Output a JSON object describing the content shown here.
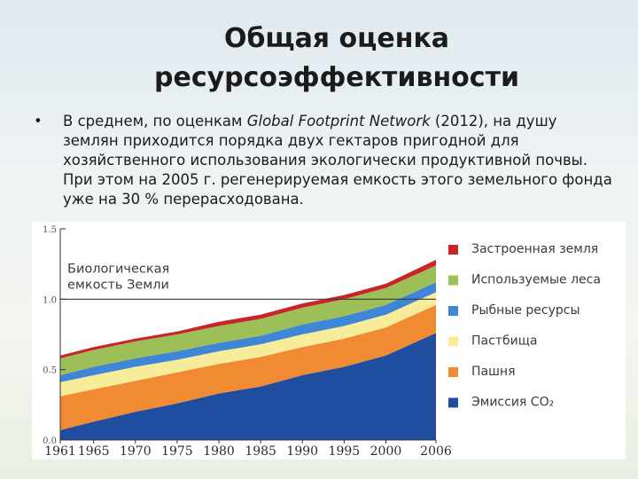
{
  "slide": {
    "title_line1": "Общая оценка",
    "title_line2": "ресурсоэффективности",
    "bullet_symbol": "•",
    "bullet_parts": {
      "before": "В среднем, по оценкам ",
      "italic": "Global Footprint Network",
      "after": " (2012), на душу землян приходится порядка двух гектаров пригодной для хозяйственного использования экологически продуктивной почвы. При этом на 2005 г. регенерируемая емкость этого земельного фонда уже на 30 % перерасходована."
    }
  },
  "chart_data": {
    "type": "area",
    "stacked": true,
    "x": [
      1961,
      1965,
      1970,
      1975,
      1980,
      1985,
      1990,
      1995,
      2000,
      2006
    ],
    "x_tick_labels": [
      "1961",
      "1965",
      "1970",
      "1975",
      "1980",
      "1985",
      "1990",
      "1995",
      "2000",
      "2006"
    ],
    "y_tick_labels": [
      "0.0",
      "0.5",
      "1.0",
      "1.5"
    ],
    "ylim": [
      0,
      1.5
    ],
    "reference_line": {
      "y": 1.0,
      "label_line1": "Биологическая",
      "label_line2": "емкость Земли"
    },
    "series": [
      {
        "name": "Эмиссия CO₂",
        "color": "#1f4ea0",
        "values": [
          0.07,
          0.13,
          0.2,
          0.26,
          0.33,
          0.38,
          0.46,
          0.52,
          0.6,
          0.76
        ]
      },
      {
        "name": "Пашня",
        "color": "#f08a33",
        "values": [
          0.24,
          0.23,
          0.22,
          0.22,
          0.21,
          0.21,
          0.2,
          0.2,
          0.2,
          0.2
        ]
      },
      {
        "name": "Пастбища",
        "color": "#f7ec9a",
        "values": [
          0.1,
          0.1,
          0.1,
          0.09,
          0.09,
          0.09,
          0.09,
          0.09,
          0.09,
          0.09
        ]
      },
      {
        "name": "Рыбные ресурсы",
        "color": "#3f86d6",
        "values": [
          0.05,
          0.06,
          0.06,
          0.06,
          0.06,
          0.06,
          0.07,
          0.07,
          0.07,
          0.07
        ]
      },
      {
        "name": "Используемые леса",
        "color": "#9cbf58",
        "values": [
          0.12,
          0.12,
          0.12,
          0.12,
          0.12,
          0.12,
          0.12,
          0.12,
          0.12,
          0.12
        ]
      },
      {
        "name": "Застроенная земля",
        "color": "#c8242a",
        "values": [
          0.02,
          0.02,
          0.02,
          0.02,
          0.03,
          0.03,
          0.03,
          0.03,
          0.03,
          0.04
        ]
      }
    ],
    "legend_position": "right",
    "grid": false
  }
}
